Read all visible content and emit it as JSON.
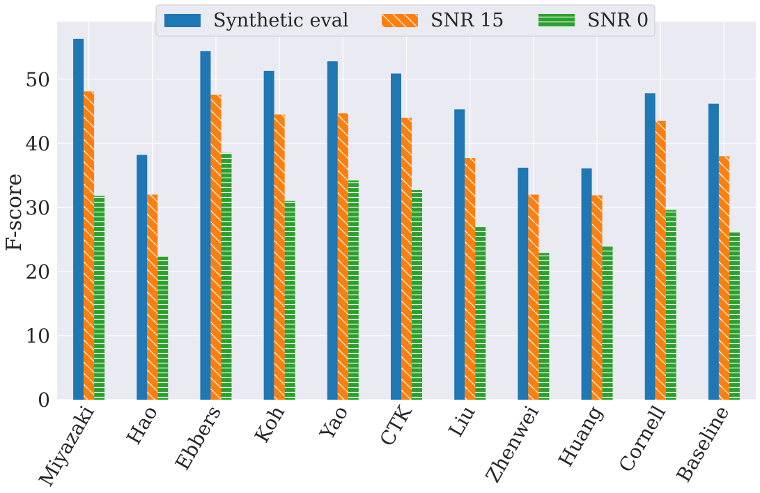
{
  "chart_data": {
    "type": "bar",
    "title": "",
    "xlabel": "",
    "ylabel": "F-score",
    "ylim": [
      0,
      59
    ],
    "yticks": [
      0,
      10,
      20,
      30,
      40,
      50
    ],
    "grid": true,
    "legend_position": "top-center",
    "categories": [
      "Miyazaki",
      "Hao",
      "Ebbers",
      "Koh",
      "Yao",
      "CTK",
      "Liu",
      "Zhenwei",
      "Huang",
      "Cornell",
      "Baseline"
    ],
    "series": [
      {
        "name": "Synthetic eval",
        "color": "#1f77b4",
        "hatch": "none",
        "values": [
          56.3,
          38.2,
          54.4,
          51.3,
          52.8,
          50.9,
          45.3,
          36.2,
          36.1,
          47.8,
          46.2
        ]
      },
      {
        "name": "SNR 15",
        "color": "#ff7f0e",
        "hatch": "diagonal",
        "values": [
          48.1,
          32.0,
          47.6,
          44.5,
          44.7,
          44.0,
          37.7,
          32.0,
          31.9,
          43.5,
          38.0
        ]
      },
      {
        "name": "SNR 0",
        "color": "#2ca02c",
        "hatch": "horizontal",
        "values": [
          31.8,
          22.3,
          38.5,
          31.0,
          34.2,
          32.7,
          27.0,
          22.9,
          23.9,
          29.6,
          26.1
        ]
      }
    ]
  }
}
